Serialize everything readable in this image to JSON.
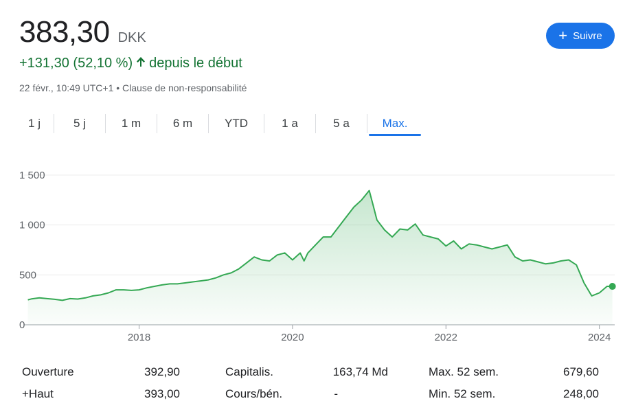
{
  "header": {
    "price": "383,30",
    "currency": "DKK",
    "change": "+131,30 (52,10 %)",
    "change_suffix": "depuis le début",
    "timestamp": "22 févr., 10:49 UTC+1",
    "disclaimer": "Clause de non-responsabilité",
    "meta_separator": "•",
    "follow_label": "Suivre",
    "follow_icon": "plus-icon",
    "arrow_icon": "arrow-up-icon",
    "positive_color": "#137333",
    "accent_color": "#1a73e8"
  },
  "tabs": [
    {
      "label": "1 j",
      "active": false
    },
    {
      "label": "5 j",
      "active": false
    },
    {
      "label": "1 m",
      "active": false
    },
    {
      "label": "6 m",
      "active": false
    },
    {
      "label": "YTD",
      "active": false
    },
    {
      "label": "1 a",
      "active": false
    },
    {
      "label": "5 a",
      "active": false
    },
    {
      "label": "Max.",
      "active": true
    }
  ],
  "chart_data": {
    "type": "area",
    "title": "",
    "xlabel": "",
    "ylabel": "",
    "ylim": [
      0,
      1500
    ],
    "xlim": [
      2016.5,
      2024.2
    ],
    "yticks": [
      0,
      500,
      1000,
      1500
    ],
    "ytick_labels": [
      "0",
      "500",
      "1 000",
      "1 500"
    ],
    "xticks": [
      2018,
      2020,
      2022,
      2024
    ],
    "xtick_labels": [
      "2018",
      "2020",
      "2022",
      "2024"
    ],
    "grid": true,
    "line_color": "#34a853",
    "series": [
      {
        "x": [
          2016.55,
          2016.6,
          2016.7,
          2016.8,
          2016.9,
          2017.0,
          2017.1,
          2017.2,
          2017.3,
          2017.4,
          2017.5,
          2017.6,
          2017.7,
          2017.8,
          2017.9,
          2018.0,
          2018.1,
          2018.2,
          2018.3,
          2018.4,
          2018.5,
          2018.6,
          2018.7,
          2018.8,
          2018.9,
          2019.0,
          2019.1,
          2019.2,
          2019.3,
          2019.4,
          2019.5,
          2019.6,
          2019.7,
          2019.8,
          2019.9,
          2020.0,
          2020.1,
          2020.15,
          2020.2,
          2020.3,
          2020.4,
          2020.5,
          2020.6,
          2020.7,
          2020.8,
          2020.9,
          2021.0,
          2021.05,
          2021.1,
          2021.2,
          2021.3,
          2021.4,
          2021.5,
          2021.6,
          2021.7,
          2021.8,
          2021.9,
          2022.0,
          2022.1,
          2022.2,
          2022.3,
          2022.4,
          2022.5,
          2022.6,
          2022.7,
          2022.8,
          2022.9,
          2023.0,
          2023.1,
          2023.2,
          2023.3,
          2023.4,
          2023.5,
          2023.6,
          2023.7,
          2023.8,
          2023.9,
          2024.0,
          2024.1,
          2024.17
        ],
        "y": [
          250,
          260,
          270,
          262,
          255,
          245,
          262,
          258,
          270,
          290,
          300,
          320,
          350,
          350,
          345,
          350,
          370,
          385,
          400,
          410,
          410,
          420,
          430,
          440,
          450,
          470,
          500,
          520,
          560,
          620,
          680,
          650,
          640,
          700,
          720,
          650,
          720,
          640,
          720,
          800,
          880,
          880,
          980,
          1080,
          1180,
          1250,
          1345,
          1200,
          1050,
          950,
          880,
          960,
          950,
          1010,
          900,
          880,
          860,
          790,
          840,
          760,
          810,
          800,
          780,
          760,
          780,
          800,
          680,
          640,
          650,
          630,
          610,
          620,
          640,
          650,
          600,
          420,
          290,
          320,
          385,
          385
        ]
      }
    ]
  },
  "stats": [
    {
      "label": "Ouverture",
      "value": "392,90"
    },
    {
      "label": "Capitalis.",
      "value": "163,74 Md"
    },
    {
      "label": "Max. 52 sem.",
      "value": "679,60"
    },
    {
      "label": "+Haut",
      "value": "393,00"
    },
    {
      "label": "Cours/bén.",
      "value": "-"
    },
    {
      "label": "Min. 52 sem.",
      "value": "248,00"
    }
  ]
}
